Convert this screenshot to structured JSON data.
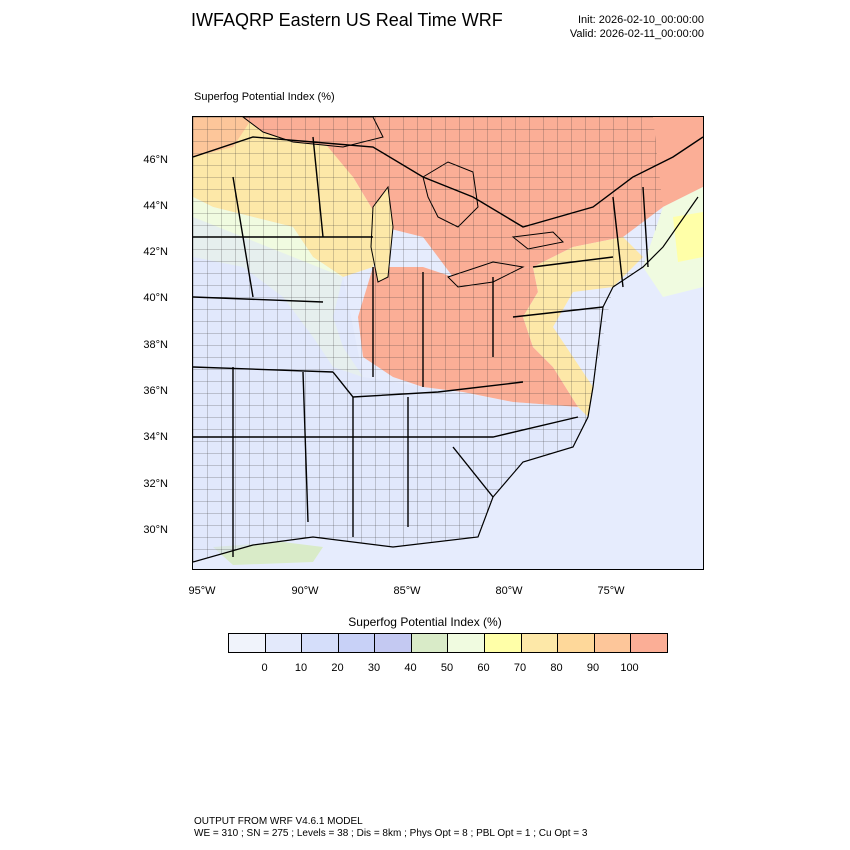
{
  "header": {
    "title": "IWFAQRP Eastern US Real Time WRF",
    "init": "Init: 2026-02-10_00:00:00",
    "valid": "Valid: 2026-02-11_00:00:00"
  },
  "map": {
    "field_label": "Superfog Potential Index   (%)",
    "lat_labels": [
      "46°N",
      "44°N",
      "42°N",
      "40°N",
      "38°N",
      "36°N",
      "34°N",
      "32°N",
      "30°N"
    ],
    "lon_labels": [
      "95°W",
      "90°W",
      "85°W",
      "80°W",
      "75°W"
    ]
  },
  "colorbar": {
    "title": "Superfog Potential Index  (%)",
    "labels": [
      "0",
      "10",
      "20",
      "30",
      "40",
      "50",
      "60",
      "70",
      "80",
      "90",
      "100"
    ],
    "colors": [
      "#f0f3fb",
      "#e3e9fb",
      "#d5defa",
      "#c8d1f7",
      "#c4c9f2",
      "#d9ebc8",
      "#f0fbe0",
      "#ffffa8",
      "#fde8a8",
      "#fed89a",
      "#fdc69a",
      "#fbae96"
    ]
  },
  "footer": {
    "line1": "OUTPUT FROM WRF V4.6.1 MODEL",
    "line2": "WE = 310 ; SN = 275 ; Levels = 38 ; Dis = 8km ; Phys Opt = 8 ; PBL Opt = 1 ; Cu Opt = 3"
  }
}
